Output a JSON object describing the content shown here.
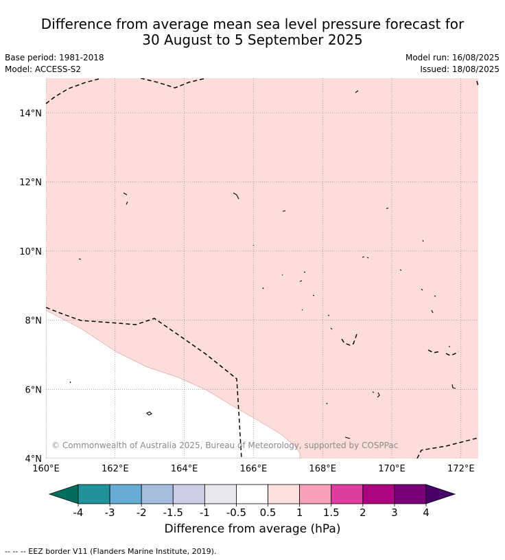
{
  "header": {
    "title_line1": "Difference from average mean sea level pressure forecast for",
    "title_line2": "30 August to 5 September 2025",
    "base_period": "Base period: 1981-2018",
    "model": "Model: ACCESS-S2",
    "model_run": "Model run: 16/08/2025",
    "issued": "Issued: 18/08/2025"
  },
  "map": {
    "lon_range": [
      160,
      172.5
    ],
    "lat_range": [
      4,
      15
    ],
    "x_ticks": [
      "160°E",
      "162°E",
      "164°E",
      "166°E",
      "168°E",
      "170°E",
      "172°E"
    ],
    "y_ticks": [
      "4°N",
      "6°N",
      "8°N",
      "10°N",
      "12°N",
      "14°N"
    ],
    "grid": true,
    "fill_color": "#fdddd9",
    "watermark": "© Commonwealth of Australia 2025, Bureau of Meteorology, supported by COSPPac"
  },
  "colorbar": {
    "title": "Difference from average (hPa)",
    "labels": [
      "-4",
      "-3",
      "-2",
      "-1.5",
      "-1",
      "-0.5",
      "0.5",
      "1",
      "1.5",
      "2",
      "3",
      "4"
    ],
    "colors": [
      "#006e5e",
      "#1f9399",
      "#67acd5",
      "#a6bcdc",
      "#cdcee6",
      "#eae7ec",
      "#ffffff",
      "#fde0dc",
      "#f9a0bb",
      "#dd3ea0",
      "#ad0380",
      "#7a017a",
      "#49006a"
    ]
  },
  "legend": {
    "eez_text": "--  --  -- EEZ border V11 (Flanders Marine Institute, 2019)."
  }
}
